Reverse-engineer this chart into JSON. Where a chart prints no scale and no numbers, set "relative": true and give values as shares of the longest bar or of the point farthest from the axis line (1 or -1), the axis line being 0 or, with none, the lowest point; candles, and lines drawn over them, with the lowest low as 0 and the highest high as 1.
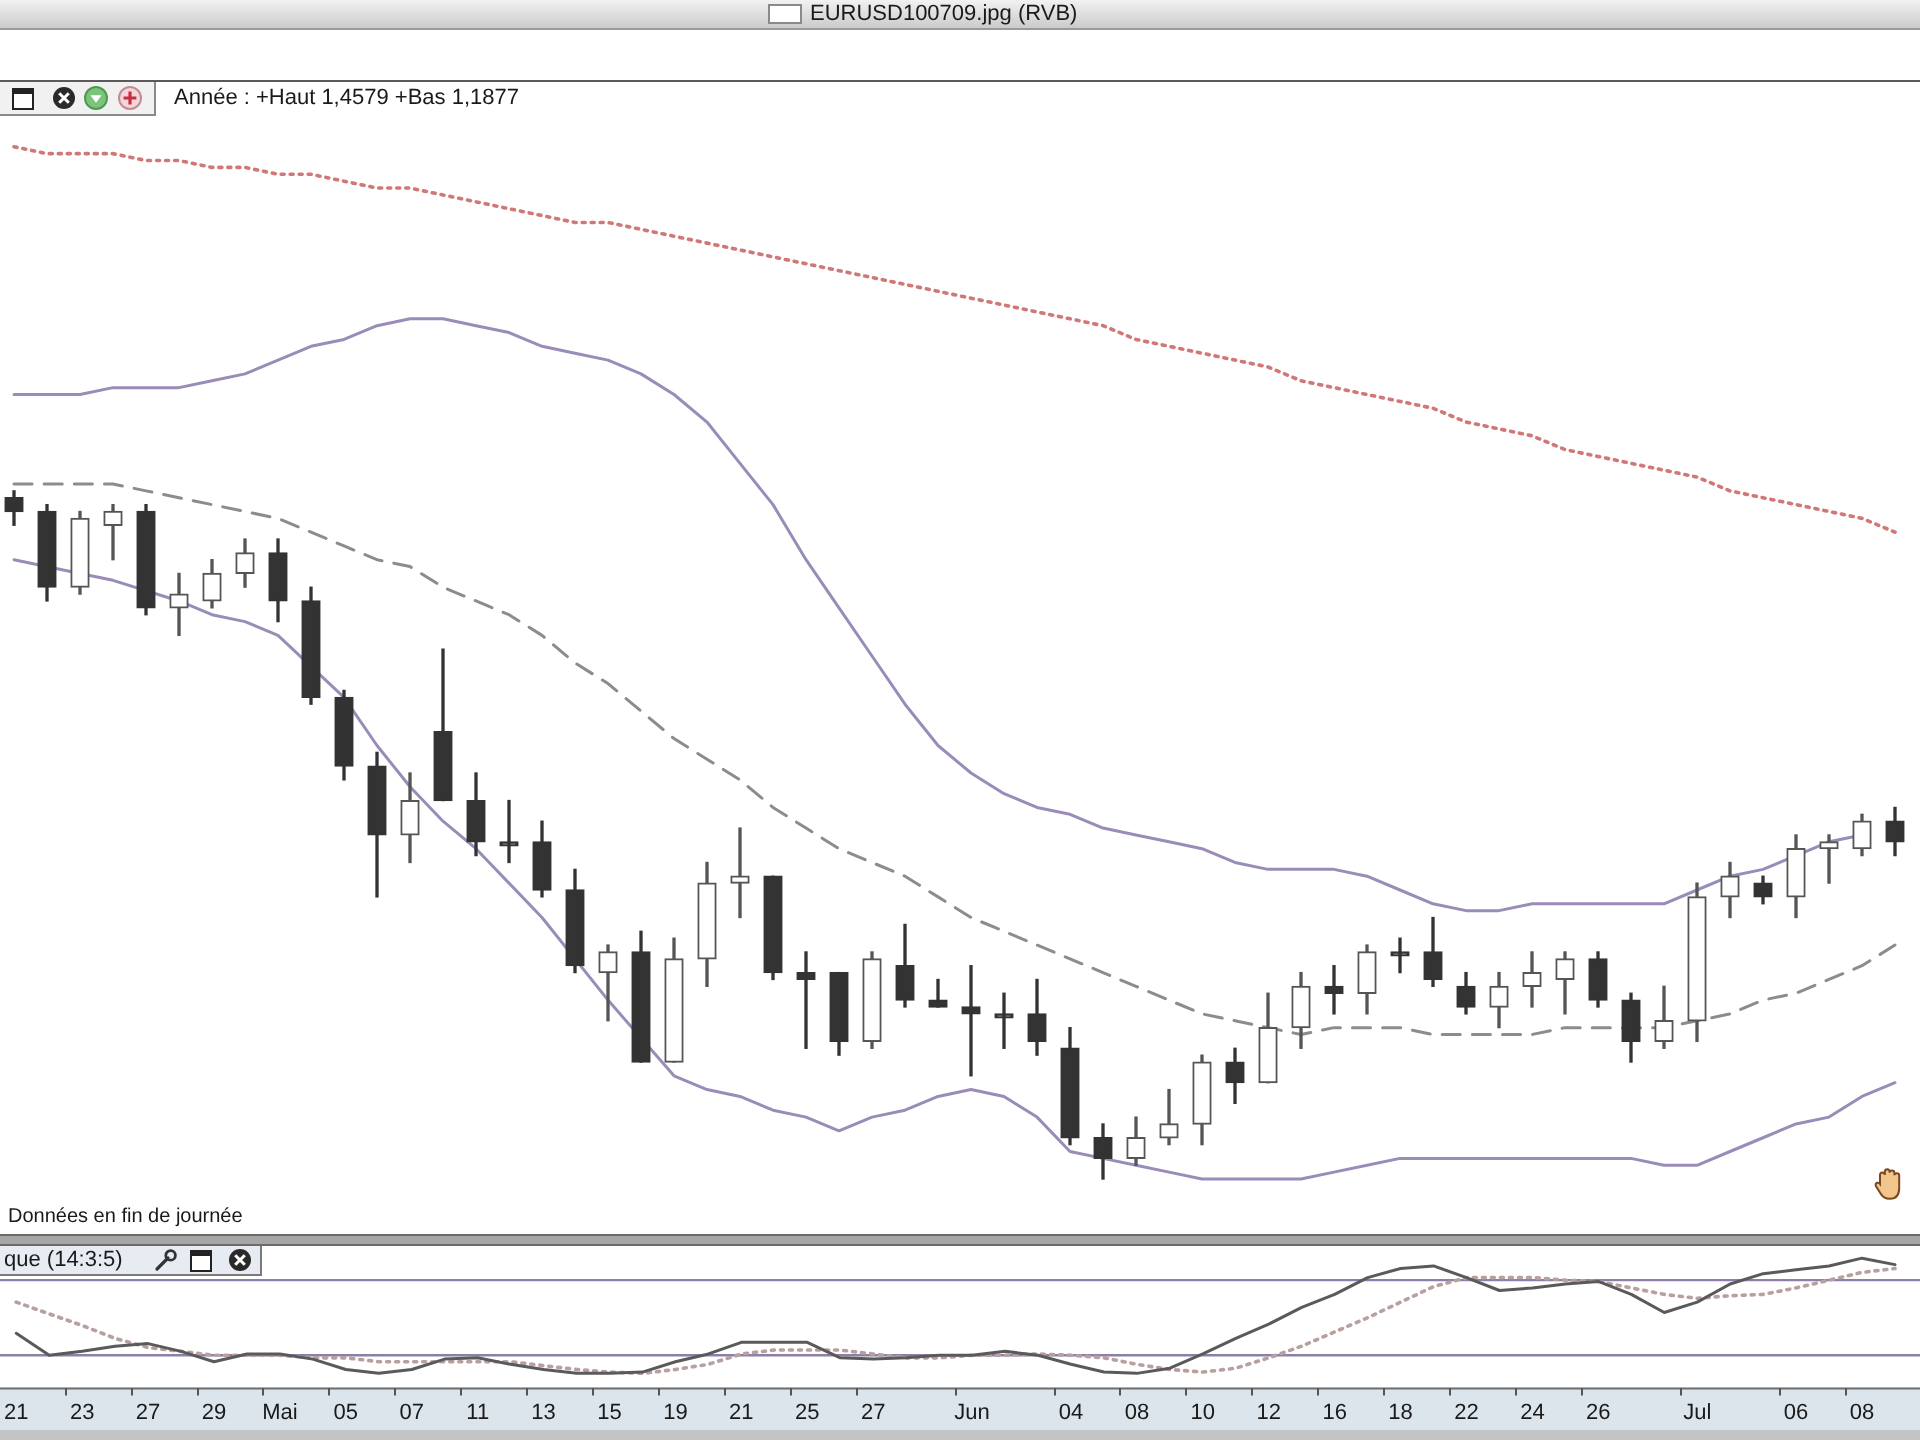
{
  "chart_data": [
    {
      "type": "candlestick",
      "title": "EURUSD100709.jpg (RVB)",
      "subtitle": "Année : +Haut 1,4579 +Bas 1,1877",
      "annotations": [
        "Données en fin de journée"
      ],
      "relative": true,
      "categories": [
        null,
        null,
        null,
        null,
        null,
        null,
        null,
        null,
        null,
        null,
        null,
        null,
        null,
        null,
        null,
        null,
        null,
        null,
        null,
        null,
        null,
        null,
        null,
        null,
        null,
        null,
        null,
        null,
        null,
        null,
        null,
        null,
        null,
        null,
        null,
        null,
        null,
        null,
        null,
        null,
        null,
        null,
        null,
        null,
        null,
        null,
        null,
        null,
        null,
        null,
        null,
        null,
        null,
        null,
        null,
        null,
        null,
        null
      ],
      "colors": [
        "#333333",
        "#333333",
        "#555555",
        "#555555",
        "#333333",
        "#555555",
        "#555555",
        "#555555",
        "#333333",
        "#333333",
        "#333333",
        "#333333",
        "#555555",
        "#333333",
        "#333333",
        "#333333",
        "#333333",
        "#333333",
        "#555555",
        "#333333",
        "#555555",
        "#555555",
        "#555555",
        "#333333",
        "#333333",
        "#333333",
        "#555555",
        "#333333",
        "#333333",
        "#333333",
        "#333333",
        "#333333",
        "#333333",
        "#333333",
        "#555555",
        "#555555",
        "#555555",
        "#333333",
        "#555555",
        "#555555",
        "#333333",
        "#555555",
        "#333333",
        "#333333",
        "#333333",
        "#555555",
        "#555555",
        "#555555",
        "#333333",
        "#333333",
        "#555555",
        "#555555",
        "#555555",
        "#333333",
        "#555555",
        "#555555",
        "#555555",
        "#333333"
      ],
      "ohlc": [
        [
          0.99,
          1,
          0.95,
          0.97
        ],
        [
          0.97,
          0.98,
          0.84,
          0.86
        ],
        [
          0.86,
          0.97,
          0.85,
          0.96
        ],
        [
          0.95,
          0.98,
          0.9,
          0.97
        ],
        [
          0.97,
          0.98,
          0.82,
          0.83
        ],
        [
          0.83,
          0.88,
          0.79,
          0.85
        ],
        [
          0.84,
          0.9,
          0.83,
          0.88
        ],
        [
          0.88,
          0.93,
          0.86,
          0.91
        ],
        [
          0.91,
          0.93,
          0.81,
          0.84
        ],
        [
          0.84,
          0.86,
          0.69,
          0.7
        ],
        [
          0.7,
          0.71,
          0.58,
          0.6
        ],
        [
          0.6,
          0.62,
          0.41,
          0.5
        ],
        [
          0.5,
          0.59,
          0.46,
          0.55
        ],
        [
          0.65,
          0.77,
          0.55,
          0.55
        ],
        [
          0.55,
          0.59,
          0.47,
          0.49
        ],
        [
          0.49,
          0.55,
          0.46,
          0.49
        ],
        [
          0.49,
          0.52,
          0.41,
          0.42
        ],
        [
          0.42,
          0.45,
          0.3,
          0.31
        ],
        [
          0.3,
          0.34,
          0.23,
          0.33
        ],
        [
          0.33,
          0.36,
          0.17,
          0.17
        ],
        [
          0.17,
          0.35,
          0.17,
          0.32
        ],
        [
          0.32,
          0.46,
          0.28,
          0.43
        ],
        [
          0.43,
          0.51,
          0.38,
          0.44
        ],
        [
          0.44,
          0.44,
          0.29,
          0.3
        ],
        [
          0.3,
          0.33,
          0.19,
          0.29
        ],
        [
          0.3,
          0.3,
          0.18,
          0.2
        ],
        [
          0.2,
          0.33,
          0.19,
          0.32
        ],
        [
          0.31,
          0.37,
          0.25,
          0.26
        ],
        [
          0.26,
          0.29,
          0.25,
          0.25
        ],
        [
          0.25,
          0.31,
          0.15,
          0.24
        ],
        [
          0.24,
          0.27,
          0.19,
          0.24
        ],
        [
          0.24,
          0.29,
          0.18,
          0.2
        ],
        [
          0.19,
          0.22,
          0.05,
          0.06
        ],
        [
          0.06,
          0.08,
          0,
          0.03
        ],
        [
          0.03,
          0.09,
          0.02,
          0.06
        ],
        [
          0.06,
          0.13,
          0.05,
          0.08
        ],
        [
          0.08,
          0.18,
          0.05,
          0.17
        ],
        [
          0.17,
          0.19,
          0.11,
          0.14
        ],
        [
          0.14,
          0.27,
          0.14,
          0.22
        ],
        [
          0.22,
          0.3,
          0.19,
          0.28
        ],
        [
          0.28,
          0.31,
          0.24,
          0.27
        ],
        [
          0.27,
          0.34,
          0.24,
          0.33
        ],
        [
          0.33,
          0.35,
          0.3,
          0.33
        ],
        [
          0.33,
          0.38,
          0.28,
          0.29
        ],
        [
          0.28,
          0.3,
          0.24,
          0.25
        ],
        [
          0.25,
          0.3,
          0.22,
          0.28
        ],
        [
          0.28,
          0.33,
          0.25,
          0.3
        ],
        [
          0.29,
          0.33,
          0.24,
          0.32
        ],
        [
          0.32,
          0.33,
          0.25,
          0.26
        ],
        [
          0.26,
          0.27,
          0.17,
          0.2
        ],
        [
          0.2,
          0.28,
          0.19,
          0.23
        ],
        [
          0.23,
          0.43,
          0.2,
          0.41
        ],
        [
          0.41,
          0.46,
          0.38,
          0.44
        ],
        [
          0.43,
          0.44,
          0.4,
          0.41
        ],
        [
          0.41,
          0.5,
          0.38,
          0.48
        ],
        [
          0.48,
          0.5,
          0.43,
          0.49
        ],
        [
          0.48,
          0.53,
          0.47,
          0.52
        ],
        [
          0.52,
          0.54,
          0.47,
          0.49
        ]
      ],
      "series": [
        {
          "type": "line",
          "color": "#9a8cb8",
          "values": [
            1.14,
            1.14,
            1.14,
            1.15,
            1.15,
            1.15,
            1.16,
            1.17,
            1.19,
            1.21,
            1.22,
            1.24,
            1.25,
            1.25,
            1.24,
            1.23,
            1.21,
            1.2,
            1.19,
            1.17,
            1.14,
            1.1,
            1.04,
            0.98,
            0.9,
            0.83,
            0.76,
            0.69,
            0.63,
            0.59,
            0.56,
            0.54,
            0.53,
            0.51,
            0.5,
            0.49,
            0.48,
            0.46,
            0.45,
            0.45,
            0.45,
            0.44,
            0.42,
            0.4,
            0.39,
            0.39,
            0.4,
            0.4,
            0.4,
            0.4,
            0.4,
            0.42,
            0.44,
            0.45,
            0.47,
            0.49,
            0.5,
            null
          ]
        },
        {
          "type": "line",
          "color": "#8c8c8c",
          "line_style": "dashed",
          "values": [
            1.01,
            1.01,
            1.01,
            1.01,
            1,
            0.99,
            0.98,
            0.97,
            0.96,
            0.94,
            0.92,
            0.9,
            0.89,
            0.86,
            0.84,
            0.82,
            0.79,
            0.75,
            0.72,
            0.68,
            0.64,
            0.61,
            0.58,
            0.54,
            0.51,
            0.48,
            0.46,
            0.44,
            0.41,
            0.38,
            0.36,
            0.34,
            0.32,
            0.3,
            0.28,
            0.26,
            0.24,
            0.23,
            0.22,
            0.21,
            0.22,
            0.22,
            0.22,
            0.21,
            0.21,
            0.21,
            0.21,
            0.22,
            0.22,
            0.22,
            0.22,
            0.23,
            0.24,
            0.26,
            0.27,
            0.29,
            0.31,
            0.34
          ]
        },
        {
          "type": "line",
          "color": "#9a8cb8",
          "values": [
            0.9,
            null,
            0.88,
            0.87,
            null,
            0.84,
            0.82,
            0.81,
            0.79,
            null,
            0.7,
            0.63,
            0.57,
            0.52,
            0.48,
            0.43,
            0.38,
            null,
            0.26,
            null,
            0.15,
            0.13,
            0.12,
            0.1,
            0.09,
            0.07,
            0.09,
            0.1,
            0.12,
            0.13,
            0.12,
            0.09,
            0.04,
            0.03,
            0.02,
            0.01,
            0,
            0,
            0,
            0,
            0.01,
            0.02,
            0.03,
            0.03,
            0.03,
            0.03,
            0.03,
            0.03,
            0.03,
            0.03,
            0.02,
            0.02,
            0.04,
            0.06,
            0.08,
            0.09,
            0.12,
            0.14
          ]
        },
        {
          "type": "line",
          "color": "#d07878",
          "line_style": "dotted",
          "values": [
            1.5,
            1.49,
            1.49,
            1.49,
            1.48,
            1.48,
            1.47,
            1.47,
            1.46,
            1.46,
            1.45,
            1.44,
            1.44,
            1.43,
            1.42,
            1.41,
            1.4,
            1.39,
            1.39,
            1.38,
            1.37,
            1.36,
            1.35,
            1.34,
            1.33,
            1.32,
            1.31,
            1.3,
            1.29,
            1.28,
            1.27,
            1.26,
            1.25,
            1.24,
            1.22,
            1.21,
            1.2,
            1.19,
            1.18,
            1.16,
            1.15,
            1.14,
            1.13,
            1.12,
            1.1,
            1.09,
            1.08,
            1.06,
            1.05,
            1.04,
            1.03,
            1.02,
            1,
            0.99,
            0.98,
            0.97,
            0.96,
            0.94
          ]
        }
      ]
    },
    {
      "type": "line",
      "title": "que (14:3:5)",
      "relative": true,
      "tick_labels": "x",
      "categories": [
        "21",
        null,
        "23",
        null,
        "27",
        null,
        "29",
        null,
        "Mai",
        null,
        "05",
        null,
        "07",
        null,
        "11",
        null,
        "13",
        null,
        "15",
        null,
        "19",
        null,
        "21",
        null,
        "25",
        null,
        "27",
        null,
        null,
        "Jun",
        null,
        null,
        "04",
        null,
        "08",
        null,
        "10",
        null,
        "12",
        null,
        "16",
        null,
        "18",
        null,
        "22",
        null,
        "24",
        null,
        "26",
        null,
        null,
        "Jul",
        null,
        null,
        "06",
        null,
        "08",
        null
      ],
      "series": [
        {
          "color": "#5a5a5a",
          "values": [
            0.42,
            0.25,
            0.28,
            0.32,
            0.34,
            0.28,
            0.2,
            0.26,
            0.26,
            0.22,
            0.14,
            0.11,
            0.14,
            0.22,
            0.23,
            0.18,
            0.14,
            0.11,
            0.11,
            0.12,
            0.2,
            0.26,
            0.35,
            0.35,
            0.35,
            0.23,
            0.22,
            0.23,
            0.25,
            0.25,
            0.28,
            0.25,
            0.18,
            0.12,
            0.11,
            0.15,
            0.26,
            0.38,
            0.49,
            0.62,
            0.72,
            0.85,
            0.92,
            0.94,
            0.85,
            0.75,
            0.77,
            0.8,
            0.82,
            0.72,
            0.58,
            0.66,
            0.8,
            0.88,
            0.91,
            0.94,
            1,
            0.95
          ]
        },
        {
          "color": "#b8a0a0",
          "line_style": "dotted",
          "values": [
            0.66,
            0.57,
            0.48,
            0.38,
            0.31,
            0.28,
            0.25,
            0.25,
            0.25,
            0.23,
            0.23,
            0.2,
            0.2,
            0.2,
            0.2,
            0.2,
            0.17,
            0.14,
            0.12,
            0.11,
            0.14,
            0.18,
            0.26,
            0.29,
            0.29,
            0.29,
            0.26,
            0.23,
            0.23,
            0.25,
            0.25,
            0.26,
            0.25,
            0.23,
            0.18,
            0.14,
            0.12,
            0.15,
            0.23,
            0.32,
            0.43,
            0.54,
            0.66,
            0.78,
            0.85,
            0.85,
            0.85,
            0.83,
            0.82,
            0.77,
            0.72,
            0.69,
            0.71,
            0.72,
            0.77,
            0.83,
            0.89,
            0.92
          ]
        }
      ],
      "ref_lines": [
        {
          "axis": "y",
          "value": 0.83,
          "color": "#8c80a8"
        },
        {
          "axis": "y",
          "value": 0.25,
          "color": "#8c80a8"
        }
      ]
    }
  ]
}
